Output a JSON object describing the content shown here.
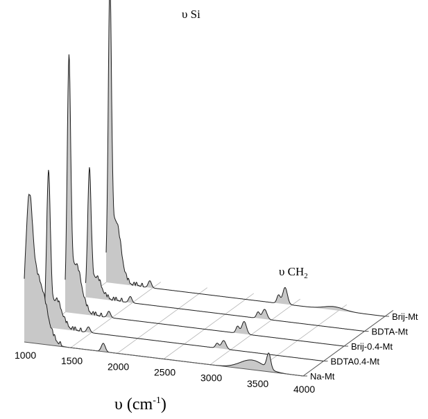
{
  "chart_data": {
    "type": "3d-waterfall-line",
    "x_ticks": [
      "1000",
      "1500",
      "2000",
      "2500",
      "3000",
      "3500",
      "4000"
    ],
    "xlim": [
      1000,
      4000
    ],
    "xlabel": {
      "main": "υ (cm",
      "sup": "-1",
      "close": ")"
    },
    "grid": true,
    "annotations": [
      {
        "text": "υ Si",
        "sub": ""
      },
      {
        "text": "υ CH",
        "sub": "2"
      }
    ],
    "series": [
      {
        "name": "Na-Mt",
        "peaks": [
          {
            "x": 1050,
            "height": 165,
            "width": 55
          },
          {
            "x": 1150,
            "height": 90,
            "width": 120
          },
          {
            "x": 1850,
            "height": 12,
            "width": 30
          },
          {
            "x": 3450,
            "height": 14,
            "width": 180
          },
          {
            "x": 3630,
            "height": 22,
            "width": 30
          }
        ]
      },
      {
        "name": "BDTA0.4-Mt",
        "peaks": [
          {
            "x": 1040,
            "height": 205,
            "width": 28
          },
          {
            "x": 1120,
            "height": 40,
            "width": 90
          },
          {
            "x": 1470,
            "height": 8,
            "width": 25
          },
          {
            "x": 2925,
            "height": 12,
            "width": 35
          },
          {
            "x": 2855,
            "height": 7,
            "width": 25
          }
        ]
      },
      {
        "name": "Brij-0.4-Mt",
        "peaks": [
          {
            "x": 1040,
            "height": 330,
            "width": 26
          },
          {
            "x": 1110,
            "height": 70,
            "width": 90
          },
          {
            "x": 1470,
            "height": 9,
            "width": 25
          },
          {
            "x": 2925,
            "height": 18,
            "width": 35
          },
          {
            "x": 2855,
            "height": 10,
            "width": 25
          }
        ]
      },
      {
        "name": "BDTA-Mt",
        "peaks": [
          {
            "x": 1040,
            "height": 170,
            "width": 26
          },
          {
            "x": 1110,
            "height": 30,
            "width": 80
          },
          {
            "x": 1480,
            "height": 9,
            "width": 25
          },
          {
            "x": 2925,
            "height": 14,
            "width": 35
          },
          {
            "x": 2855,
            "height": 9,
            "width": 25
          }
        ]
      },
      {
        "name": "Brij-Mt",
        "peaks": [
          {
            "x": 1040,
            "height": 385,
            "width": 24
          },
          {
            "x": 1100,
            "height": 90,
            "width": 80
          },
          {
            "x": 1470,
            "height": 10,
            "width": 25
          },
          {
            "x": 2925,
            "height": 24,
            "width": 35
          },
          {
            "x": 2855,
            "height": 12,
            "width": 25
          },
          {
            "x": 3450,
            "height": 5,
            "width": 150
          }
        ]
      }
    ]
  }
}
